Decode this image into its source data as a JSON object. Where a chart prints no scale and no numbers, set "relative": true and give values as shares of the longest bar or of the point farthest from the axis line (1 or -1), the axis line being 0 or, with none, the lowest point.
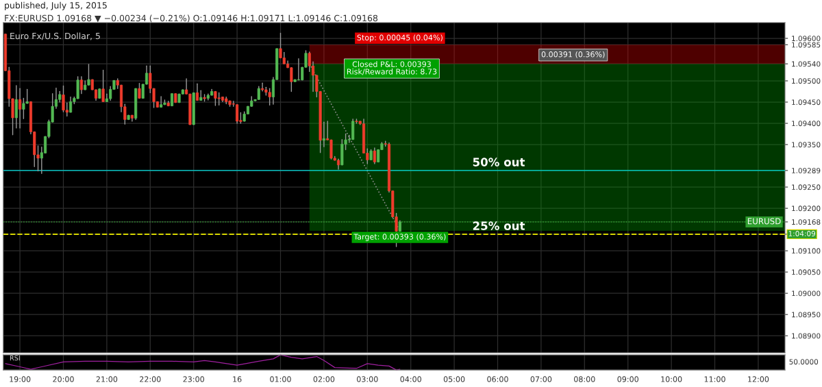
{
  "chart_data": [
    {
      "type": "candlestick",
      "title": "Euro Fx/U.S. Dollar, 5",
      "subtitle": "FX:EURUSD 1.09168 ▼ −0.00234 (−0.21%) O:1.09146 H:1.09171 L:1.09146 C:1.09168",
      "annotations": [
        "published, July 15, 2015",
        "Closed P&L: 0.00393\nRisk/Reward Ratio: 8.73",
        "0.00391 (0.36%)",
        "1:04:09"
      ],
      "x": [
        "2015-07-15T18:40",
        "2015-07-15T18:45",
        "2015-07-15T18:50",
        "2015-07-15T18:55",
        "2015-07-15T19:00",
        "2015-07-15T19:05",
        "2015-07-15T19:10",
        "2015-07-15T19:15",
        "2015-07-15T19:20",
        "2015-07-15T19:25",
        "2015-07-15T19:30",
        "2015-07-15T19:35",
        "2015-07-15T19:40",
        "2015-07-15T19:45",
        "2015-07-15T19:50",
        "2015-07-15T19:55",
        "2015-07-15T20:00",
        "2015-07-15T20:05",
        "2015-07-15T20:10",
        "2015-07-15T20:15",
        "2015-07-15T20:20",
        "2015-07-15T20:25",
        "2015-07-15T20:30",
        "2015-07-15T20:35",
        "2015-07-15T20:40",
        "2015-07-15T20:45",
        "2015-07-15T20:50",
        "2015-07-15T20:55",
        "2015-07-15T21:00",
        "2015-07-15T21:05",
        "2015-07-15T21:10",
        "2015-07-15T21:15",
        "2015-07-15T21:20",
        "2015-07-15T21:25",
        "2015-07-15T21:30",
        "2015-07-15T21:35",
        "2015-07-15T21:40",
        "2015-07-15T21:45",
        "2015-07-15T21:50",
        "2015-07-15T21:55",
        "2015-07-15T22:00",
        "2015-07-15T22:05",
        "2015-07-15T22:10",
        "2015-07-15T22:15",
        "2015-07-15T22:20",
        "2015-07-15T22:25",
        "2015-07-15T22:30",
        "2015-07-15T22:35",
        "2015-07-15T22:40",
        "2015-07-15T22:45",
        "2015-07-15T22:50",
        "2015-07-15T22:55",
        "2015-07-15T23:00",
        "2015-07-15T23:05",
        "2015-07-15T23:10",
        "2015-07-15T23:15",
        "2015-07-15T23:20",
        "2015-07-15T23:25",
        "2015-07-15T23:30",
        "2015-07-15T23:35",
        "2015-07-15T23:40",
        "2015-07-15T23:45",
        "2015-07-15T23:50",
        "2015-07-15T23:55",
        "2015-07-16T00:00",
        "2015-07-16T00:05",
        "2015-07-16T00:10",
        "2015-07-16T00:15",
        "2015-07-16T00:20",
        "2015-07-16T00:25",
        "2015-07-16T00:30",
        "2015-07-16T00:35",
        "2015-07-16T00:40",
        "2015-07-16T00:45",
        "2015-07-16T00:50",
        "2015-07-16T00:55",
        "2015-07-16T01:00",
        "2015-07-16T01:05",
        "2015-07-16T01:10",
        "2015-07-16T01:15",
        "2015-07-16T01:20",
        "2015-07-16T01:25",
        "2015-07-16T01:30",
        "2015-07-16T01:35",
        "2015-07-16T01:40",
        "2015-07-16T01:45",
        "2015-07-16T01:50",
        "2015-07-16T01:55",
        "2015-07-16T02:00",
        "2015-07-16T02:05",
        "2015-07-16T02:10",
        "2015-07-16T02:15",
        "2015-07-16T02:20",
        "2015-07-16T02:25",
        "2015-07-16T02:30",
        "2015-07-16T02:35",
        "2015-07-16T02:40",
        "2015-07-16T02:45",
        "2015-07-16T02:50",
        "2015-07-16T02:55",
        "2015-07-16T03:00",
        "2015-07-16T03:05",
        "2015-07-16T03:10",
        "2015-07-16T03:15",
        "2015-07-16T03:20",
        "2015-07-16T03:25",
        "2015-07-16T03:30",
        "2015-07-16T03:35",
        "2015-07-16T03:40",
        "2015-07-16T03:45"
      ],
      "ohlc": [
        [
          1.0961,
          1.0961,
          1.09524,
          1.09524
        ],
        [
          1.09524,
          1.09532,
          1.0944,
          1.09458
        ],
        [
          1.09458,
          1.09458,
          1.09373,
          1.09413
        ],
        [
          1.09413,
          1.09489,
          1.09389,
          1.09456
        ],
        [
          1.09456,
          1.09482,
          1.09389,
          1.09433
        ],
        [
          1.09433,
          1.09459,
          1.09411,
          1.09447
        ],
        [
          1.09447,
          1.0948,
          1.09447,
          1.09451
        ],
        [
          1.09451,
          1.09451,
          1.09375,
          1.0938
        ],
        [
          1.0938,
          1.0938,
          1.09298,
          1.09326
        ],
        [
          1.09326,
          1.09347,
          1.09288,
          1.09318
        ],
        [
          1.09318,
          1.09344,
          1.09282,
          1.09331
        ],
        [
          1.0933,
          1.09369,
          1.0933,
          1.09369
        ],
        [
          1.09369,
          1.09408,
          1.09366,
          1.09404
        ],
        [
          1.09403,
          1.0947,
          1.09403,
          1.0944
        ],
        [
          1.0944,
          1.09483,
          1.09435,
          1.09456
        ],
        [
          1.09456,
          1.09475,
          1.0945,
          1.09468
        ],
        [
          1.09467,
          1.09488,
          1.09427,
          1.09431
        ],
        [
          1.09431,
          1.09448,
          1.09417,
          1.09426
        ],
        [
          1.09426,
          1.09462,
          1.09426,
          1.09451
        ],
        [
          1.09451,
          1.09462,
          1.09446,
          1.09459
        ],
        [
          1.09458,
          1.0951,
          1.09458,
          1.09502
        ],
        [
          1.09502,
          1.0951,
          1.0947,
          1.09479
        ],
        [
          1.09479,
          1.095,
          1.09479,
          1.0949
        ],
        [
          1.0949,
          1.09539,
          1.0949,
          1.09503
        ],
        [
          1.09503,
          1.09503,
          1.09479,
          1.09479
        ],
        [
          1.09479,
          1.09479,
          1.09454,
          1.09459
        ],
        [
          1.09459,
          1.09481,
          1.09459,
          1.09481
        ],
        [
          1.09481,
          1.09525,
          1.09451,
          1.09451
        ],
        [
          1.09451,
          1.09469,
          1.09451,
          1.09458
        ],
        [
          1.09458,
          1.09487,
          1.09454,
          1.0948
        ],
        [
          1.0948,
          1.09501,
          1.0948,
          1.09501
        ],
        [
          1.09501,
          1.09505,
          1.09482,
          1.0949
        ],
        [
          1.0949,
          1.0949,
          1.09427,
          1.09439
        ],
        [
          1.09439,
          1.09445,
          1.09398,
          1.09409
        ],
        [
          1.09409,
          1.09419,
          1.09409,
          1.09419
        ],
        [
          1.09419,
          1.09419,
          1.09405,
          1.09412
        ],
        [
          1.09412,
          1.09482,
          1.09409,
          1.09482
        ],
        [
          1.09482,
          1.09494,
          1.09459,
          1.09459
        ],
        [
          1.09459,
          1.09492,
          1.09459,
          1.09492
        ],
        [
          1.09492,
          1.09535,
          1.09492,
          1.09518
        ],
        [
          1.09518,
          1.09535,
          1.09472,
          1.09482
        ],
        [
          1.09482,
          1.09482,
          1.09437,
          1.09451
        ],
        [
          1.09451,
          1.09451,
          1.09438,
          1.09438
        ],
        [
          1.09438,
          1.09463,
          1.09438,
          1.09444
        ],
        [
          1.09444,
          1.09455,
          1.09444,
          1.09448
        ],
        [
          1.09448,
          1.09452,
          1.09441,
          1.09441
        ],
        [
          1.09441,
          1.0947,
          1.09441,
          1.0947
        ],
        [
          1.0947,
          1.0947,
          1.09449,
          1.09449
        ],
        [
          1.09449,
          1.09469,
          1.09449,
          1.09469
        ],
        [
          1.09469,
          1.09479,
          1.09469,
          1.09479
        ],
        [
          1.09479,
          1.09505,
          1.09469,
          1.09469
        ],
        [
          1.09469,
          1.09469,
          1.09397,
          1.09397
        ],
        [
          1.09397,
          1.09472,
          1.09397,
          1.09472
        ],
        [
          1.09472,
          1.09493,
          1.09454,
          1.09454
        ],
        [
          1.09454,
          1.09477,
          1.09454,
          1.09461
        ],
        [
          1.09461,
          1.09468,
          1.09452,
          1.09458
        ],
        [
          1.09459,
          1.09469,
          1.09455,
          1.09466
        ],
        [
          1.09466,
          1.0948,
          1.09466,
          1.09475
        ],
        [
          1.09475,
          1.09475,
          1.09442,
          1.09459
        ],
        [
          1.0946,
          1.09472,
          1.09443,
          1.09458
        ],
        [
          1.09462,
          1.09462,
          1.09451,
          1.09454
        ],
        [
          1.09458,
          1.09462,
          1.09446,
          1.09451
        ],
        [
          1.09453,
          1.09453,
          1.0944,
          1.09444
        ],
        [
          1.09446,
          1.09452,
          1.0944,
          1.09445
        ],
        [
          1.09444,
          1.09444,
          1.094,
          1.09405
        ],
        [
          1.09407,
          1.09425,
          1.094,
          1.09404
        ],
        [
          1.09405,
          1.09427,
          1.09405,
          1.09422
        ],
        [
          1.09422,
          1.0944,
          1.09422,
          1.0944
        ],
        [
          1.0944,
          1.09463,
          1.0944,
          1.09453
        ],
        [
          1.09453,
          1.09456,
          1.09453,
          1.09456
        ],
        [
          1.09456,
          1.09487,
          1.09456,
          1.09482
        ],
        [
          1.09482,
          1.09495,
          1.09476,
          1.09479
        ],
        [
          1.09479,
          1.09485,
          1.09466,
          1.09473
        ],
        [
          1.09473,
          1.09482,
          1.09443,
          1.09462
        ],
        [
          1.09462,
          1.09508,
          1.09445,
          1.09503
        ],
        [
          1.09503,
          1.09576,
          1.09503,
          1.09576
        ],
        [
          1.09576,
          1.09612,
          1.09554,
          1.09554
        ],
        [
          1.09554,
          1.09567,
          1.0954,
          1.0954
        ],
        [
          1.0954,
          1.09547,
          1.09531,
          1.09531
        ],
        [
          1.09531,
          1.09531,
          1.09475,
          1.09498
        ],
        [
          1.09498,
          1.09503,
          1.09498,
          1.09503
        ],
        [
          1.09502,
          1.09552,
          1.09502,
          1.09502
        ],
        [
          1.09502,
          1.09532,
          1.09502,
          1.09532
        ],
        [
          1.09532,
          1.09571,
          1.09532,
          1.09565
        ],
        [
          1.09565,
          1.09568,
          1.09522,
          1.09535
        ],
        [
          1.09535,
          1.09545,
          1.09475,
          1.09513
        ],
        [
          1.09513,
          1.09513,
          1.09462,
          1.09475
        ],
        [
          1.09475,
          1.09475,
          1.09331,
          1.0936
        ],
        [
          1.0936,
          1.09403,
          1.09345,
          1.09364
        ],
        [
          1.09364,
          1.09405,
          1.09361,
          1.09361
        ],
        [
          1.09361,
          1.09361,
          1.09316,
          1.09318
        ],
        [
          1.09318,
          1.09322,
          1.09313,
          1.09313
        ],
        [
          1.09313,
          1.09316,
          1.09292,
          1.09302
        ],
        [
          1.09302,
          1.09362,
          1.09302,
          1.09351
        ],
        [
          1.09351,
          1.09375,
          1.09338,
          1.09361
        ],
        [
          1.09361,
          1.09372,
          1.09355,
          1.09362
        ],
        [
          1.09362,
          1.0941,
          1.09362,
          1.09405
        ],
        [
          1.09405,
          1.0941,
          1.094,
          1.09404
        ],
        [
          1.09405,
          1.09405,
          1.09397,
          1.09399
        ],
        [
          1.09399,
          1.0941,
          1.0933,
          1.0933
        ],
        [
          1.0933,
          1.0934,
          1.09305,
          1.09314
        ],
        [
          1.09314,
          1.09338,
          1.09314,
          1.09335
        ],
        [
          1.09335,
          1.09342,
          1.09305,
          1.09309
        ],
        [
          1.09309,
          1.09338,
          1.09309,
          1.09338
        ],
        [
          1.09338,
          1.09355,
          1.09338,
          1.09352
        ],
        [
          1.09352,
          1.09358,
          1.09346,
          1.09351
        ],
        [
          1.09351,
          1.09354,
          1.09238,
          1.09241
        ],
        [
          1.09241,
          1.09241,
          1.09178,
          1.0918
        ],
        [
          1.0918,
          1.09188,
          1.0911,
          1.09146
        ],
        [
          1.09146,
          1.09171,
          1.09146,
          1.09168
        ]
      ],
      "series": [
        {
          "type": "line",
          "color": "#8c8c8c",
          "line_style": "dotted",
          "x": [
            "2015-07-16T01:40",
            "2015-07-16T03:45"
          ],
          "values": [
            1.0954,
            1.09147
          ]
        }
      ],
      "bands": [
        {
          "axis": "y",
          "from": 1.0954,
          "to": 1.09585,
          "label": "Stop: 0.00045 (0.04%)",
          "color": "#e00000"
        },
        {
          "axis": "y",
          "from": 1.09147,
          "to": 1.0954,
          "label": "Target: 0.00393 (0.36%)",
          "color": "#00a000"
        }
      ],
      "ref_lines": [
        {
          "axis": "y",
          "value": 1.09289,
          "label": "50% out",
          "color": "#00e0e0",
          "line_style": "solid"
        },
        {
          "axis": "y",
          "value": 1.09139,
          "label": "25% out",
          "color": "#d8d800",
          "line_style": "dashed"
        },
        {
          "axis": "y",
          "value": 1.09168,
          "label": "EURUSD",
          "color": "#2e9e2e",
          "line_style": "dotted"
        }
      ],
      "xlim": [
        "2015-07-15T18:37",
        "2015-07-16T12:37"
      ],
      "ylim": [
        1.0886,
        1.09637
      ],
      "xticks": [
        {
          "value": "2015-07-15T19:00",
          "label": null
        },
        {
          "value": "2015-07-15T20:00",
          "label": null
        },
        {
          "value": "2015-07-15T21:00",
          "label": null
        },
        {
          "value": "2015-07-15T22:00",
          "label": null
        },
        {
          "value": "2015-07-15T23:00",
          "label": null
        },
        {
          "value": "2015-07-16T00:00",
          "label": null
        },
        {
          "value": "2015-07-16T01:00",
          "label": null
        },
        {
          "value": "2015-07-16T02:00",
          "label": null
        },
        {
          "value": "2015-07-16T03:00",
          "label": null
        },
        {
          "value": "2015-07-16T04:00",
          "label": null
        },
        {
          "value": "2015-07-16T05:00",
          "label": null
        },
        {
          "value": "2015-07-16T06:00",
          "label": null
        },
        {
          "value": "2015-07-16T07:00",
          "label": null
        },
        {
          "value": "2015-07-16T08:00",
          "label": null
        },
        {
          "value": "2015-07-16T09:00",
          "label": null
        },
        {
          "value": "2015-07-16T10:00",
          "label": null
        },
        {
          "value": "2015-07-16T11:00",
          "label": null
        },
        {
          "value": "2015-07-16T12:00",
          "label": null
        }
      ],
      "yticks": [
        {
          "value": 1.089,
          "label": "1.08900"
        },
        {
          "value": 1.0895,
          "label": "1.08950"
        },
        {
          "value": 1.09,
          "label": "1.09000"
        },
        {
          "value": 1.0905,
          "label": "1.09050"
        },
        {
          "value": 1.091,
          "label": "1.09100"
        },
        {
          "value": 1.09139,
          "label": null
        },
        {
          "value": 1.09168,
          "label": "1.09168"
        },
        {
          "value": 1.092,
          "label": "1.09200"
        },
        {
          "value": 1.0925,
          "label": "1.09250"
        },
        {
          "value": 1.09289,
          "label": "1.09289"
        },
        {
          "value": 1.0935,
          "label": "1.09350"
        },
        {
          "value": 1.094,
          "label": "1.09400"
        },
        {
          "value": 1.0945,
          "label": "1.09450"
        },
        {
          "value": 1.095,
          "label": "1.09500"
        },
        {
          "value": 1.0954,
          "label": "1.09540"
        },
        {
          "value": 1.09585,
          "label": "1.09585"
        },
        {
          "value": 1.096,
          "label": "1.09600"
        }
      ],
      "tick_labels": "y",
      "grid": true
    },
    {
      "type": "line",
      "title": "RSI",
      "relative": true,
      "annotations": [
        "50.0000"
      ],
      "x": [
        "2015-07-15T18:40",
        "2015-07-15T19:00",
        "2015-07-15T19:15",
        "2015-07-15T19:30",
        "2015-07-15T20:00",
        "2015-07-15T20:30",
        "2015-07-15T21:00",
        "2015-07-15T21:30",
        "2015-07-15T22:00",
        "2015-07-15T22:30",
        "2015-07-15T23:00",
        "2015-07-15T23:15",
        "2015-07-15T23:30",
        "2015-07-16T00:00",
        "2015-07-16T00:30",
        "2015-07-16T00:50",
        "2015-07-16T01:00",
        "2015-07-16T01:15",
        "2015-07-16T01:30",
        "2015-07-16T01:50",
        "2015-07-16T02:00",
        "2015-07-16T02:15",
        "2015-07-16T02:45",
        "2015-07-16T03:00",
        "2015-07-16T03:15",
        "2015-07-16T03:30",
        "2015-07-16T03:40",
        "2015-07-16T03:45"
      ],
      "series": [
        {
          "color": "#a020a0",
          "values": [
            0.42,
            0.21,
            0.05,
            0.21,
            0.53,
            0.58,
            0.58,
            0.53,
            0.58,
            0.58,
            0.53,
            0.63,
            0.53,
            0.32,
            0.58,
            0.74,
            1,
            0.84,
            0.74,
            0.89,
            0.63,
            0.16,
            0.11,
            0.42,
            0.32,
            0.26,
            0,
            0.05
          ]
        }
      ],
      "xlim": [
        "2015-07-15T18:37",
        "2015-07-16T12:37"
      ],
      "xticks": [
        {
          "value": "2015-07-15T19:00",
          "label": "19:00"
        },
        {
          "value": "2015-07-15T20:00",
          "label": "20:00"
        },
        {
          "value": "2015-07-15T21:00",
          "label": "21:00"
        },
        {
          "value": "2015-07-15T22:00",
          "label": "22:00"
        },
        {
          "value": "2015-07-15T23:00",
          "label": "23:00"
        },
        {
          "value": "2015-07-16T00:00",
          "label": "16"
        },
        {
          "value": "2015-07-16T01:00",
          "label": "01:00"
        },
        {
          "value": "2015-07-16T02:00",
          "label": "02:00"
        },
        {
          "value": "2015-07-16T03:00",
          "label": "03:00"
        },
        {
          "value": "2015-07-16T04:00",
          "label": "04:00"
        },
        {
          "value": "2015-07-16T05:00",
          "label": "05:00"
        },
        {
          "value": "2015-07-16T06:00",
          "label": "06:00"
        },
        {
          "value": "2015-07-16T07:00",
          "label": "07:00"
        },
        {
          "value": "2015-07-16T08:00",
          "label": "08:00"
        },
        {
          "value": "2015-07-16T09:00",
          "label": "09:00"
        },
        {
          "value": "2015-07-16T10:00",
          "label": "10:00"
        },
        {
          "value": "2015-07-16T11:00",
          "label": "11:00"
        },
        {
          "value": "2015-07-16T12:00",
          "label": "12:00"
        }
      ],
      "tick_labels": "x",
      "grid": "x"
    }
  ]
}
